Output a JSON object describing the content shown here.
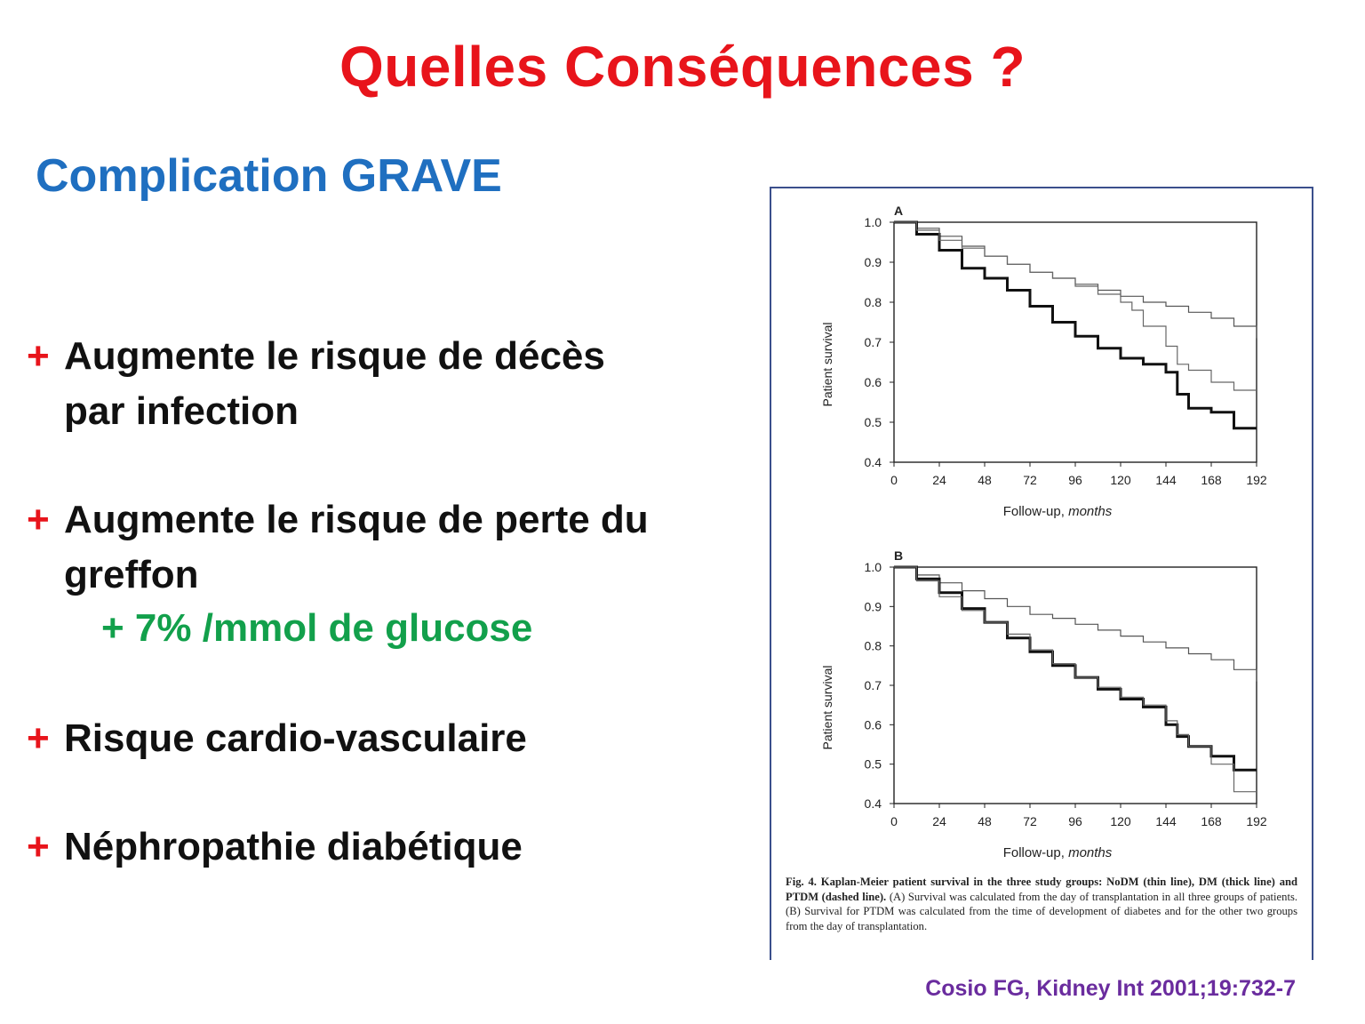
{
  "slide": {
    "title": "Quelles Conséquences ?",
    "subtitle": "Complication GRAVE",
    "bullets": [
      {
        "marker": "+",
        "line1": "Augmente le risque de décès",
        "line2": "par infection"
      },
      {
        "marker": "+",
        "line1": "Augmente le risque de perte du",
        "line2": "greffon"
      },
      {
        "marker": "+",
        "line1": "Risque cardio-vasculaire",
        "line2": ""
      },
      {
        "marker": "+",
        "line1": "Néphropathie diabétique",
        "line2": ""
      }
    ],
    "sub_bullet": "+ 7% /mmol de glucose",
    "citation": "Cosio FG, Kidney Int 2001;19:732-7",
    "colors": {
      "title": "#e8141b",
      "subtitle": "#1f6fc0",
      "marker": "#e8141b",
      "sub_bullet": "#12a04b",
      "citation": "#6a2c9e"
    }
  },
  "figure": {
    "caption_title": "Fig. 4. Kaplan-Meier patient survival in the three study groups: NoDM (thin line), DM (thick line) and PTDM (dashed line).",
    "caption_body": "(A) Survival was calculated from the day of transplantation in all three groups of patients. (B) Survival for PTDM was calculated from the time of development of diabetes and for the other two groups from the day of transplantation."
  },
  "chart_data": [
    {
      "type": "line",
      "panel": "A",
      "xlabel": "Follow-up, months",
      "ylabel": "Patient survival",
      "xlim": [
        0,
        192
      ],
      "ylim": [
        0.4,
        1.0
      ],
      "xticks": [
        "0",
        "24",
        "48",
        "72",
        "96",
        "120",
        "144",
        "168",
        "192"
      ],
      "yticks": [
        "1.0",
        "0.9",
        "0.8",
        "0.7",
        "0.6",
        "0.5",
        "0.4"
      ],
      "series": [
        {
          "style": "thin",
          "x": [
            0,
            12,
            24,
            36,
            48,
            60,
            72,
            84,
            96,
            108,
            120,
            132,
            144,
            156,
            168,
            180,
            192
          ],
          "y": [
            1.0,
            0.985,
            0.965,
            0.94,
            0.915,
            0.895,
            0.875,
            0.86,
            0.845,
            0.83,
            0.815,
            0.8,
            0.79,
            0.775,
            0.76,
            0.74,
            0.71
          ]
        },
        {
          "style": "thick",
          "x": [
            0,
            12,
            24,
            36,
            48,
            60,
            72,
            84,
            96,
            108,
            120,
            132,
            144,
            150,
            156,
            168,
            180,
            192
          ],
          "y": [
            1.0,
            0.97,
            0.93,
            0.885,
            0.86,
            0.83,
            0.79,
            0.75,
            0.715,
            0.685,
            0.66,
            0.645,
            0.625,
            0.57,
            0.535,
            0.525,
            0.485,
            0.485
          ]
        },
        {
          "style": "dashed",
          "x": [
            0,
            12,
            24,
            36,
            48,
            60,
            72,
            84,
            96,
            108,
            120,
            126,
            132,
            144,
            150,
            156,
            168,
            180,
            192
          ],
          "y": [
            1.0,
            0.98,
            0.955,
            0.935,
            0.915,
            0.895,
            0.875,
            0.86,
            0.84,
            0.82,
            0.8,
            0.78,
            0.74,
            0.69,
            0.645,
            0.63,
            0.6,
            0.58,
            0.58
          ]
        }
      ]
    },
    {
      "type": "line",
      "panel": "B",
      "xlabel": "Follow-up, months",
      "ylabel": "Patient survival",
      "xlim": [
        0,
        192
      ],
      "ylim": [
        0.4,
        1.0
      ],
      "xticks": [
        "0",
        "24",
        "48",
        "72",
        "96",
        "120",
        "144",
        "168",
        "192"
      ],
      "yticks": [
        "1.0",
        "0.9",
        "0.8",
        "0.7",
        "0.6",
        "0.5",
        "0.4"
      ],
      "series": [
        {
          "style": "thin",
          "x": [
            0,
            12,
            24,
            36,
            48,
            60,
            72,
            84,
            96,
            108,
            120,
            132,
            144,
            156,
            168,
            180,
            192
          ],
          "y": [
            1.0,
            0.98,
            0.96,
            0.94,
            0.92,
            0.9,
            0.88,
            0.87,
            0.855,
            0.84,
            0.825,
            0.81,
            0.795,
            0.78,
            0.765,
            0.74,
            0.71
          ]
        },
        {
          "style": "thick",
          "x": [
            0,
            12,
            24,
            36,
            48,
            60,
            72,
            84,
            96,
            108,
            120,
            132,
            144,
            150,
            156,
            168,
            180,
            192
          ],
          "y": [
            1.0,
            0.97,
            0.935,
            0.895,
            0.86,
            0.82,
            0.785,
            0.75,
            0.72,
            0.69,
            0.665,
            0.645,
            0.6,
            0.57,
            0.545,
            0.52,
            0.485,
            0.485
          ]
        },
        {
          "style": "dashed",
          "x": [
            0,
            12,
            24,
            36,
            48,
            60,
            72,
            84,
            96,
            108,
            120,
            132,
            144,
            150,
            156,
            168,
            180,
            192
          ],
          "y": [
            1.0,
            0.965,
            0.925,
            0.89,
            0.86,
            0.83,
            0.79,
            0.755,
            0.72,
            0.695,
            0.67,
            0.65,
            0.61,
            0.575,
            0.545,
            0.5,
            0.43,
            0.43
          ]
        }
      ]
    }
  ]
}
